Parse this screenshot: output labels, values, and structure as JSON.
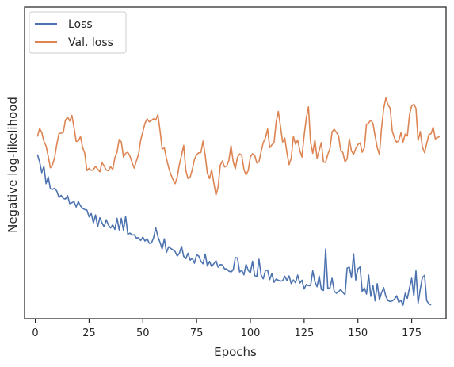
{
  "chart_data": {
    "type": "line",
    "xlabel": "Epochs",
    "ylabel": "Negative log-likelihood",
    "xlim": [
      -5,
      191
    ],
    "ylim": [
      0,
      1
    ],
    "x_ticks": [
      0,
      25,
      50,
      75,
      100,
      125,
      150,
      175
    ],
    "y_ticks_visible": false,
    "grid": false,
    "legend": "top-left",
    "series": [
      {
        "name": "Loss",
        "color": "#4c72b0",
        "x_start": 1,
        "x_step": 1,
        "values": [
          0.531,
          0.505,
          0.467,
          0.489,
          0.428,
          0.452,
          0.41,
          0.408,
          0.412,
          0.402,
          0.38,
          0.387,
          0.376,
          0.374,
          0.386,
          0.358,
          0.361,
          0.365,
          0.346,
          0.365,
          0.35,
          0.341,
          0.337,
          0.335,
          0.311,
          0.323,
          0.29,
          0.318,
          0.276,
          0.308,
          0.29,
          0.276,
          0.301,
          0.282,
          0.272,
          0.283,
          0.267,
          0.306,
          0.265,
          0.306,
          0.264,
          0.313,
          0.25,
          0.254,
          0.247,
          0.248,
          0.237,
          0.238,
          0.228,
          0.24,
          0.226,
          0.234,
          0.218,
          0.219,
          0.238,
          0.272,
          0.242,
          0.221,
          0.198,
          0.234,
          0.186,
          0.206,
          0.2,
          0.195,
          0.189,
          0.173,
          0.183,
          0.207,
          0.172,
          0.164,
          0.183,
          0.159,
          0.165,
          0.148,
          0.178,
          0.173,
          0.155,
          0.146,
          0.18,
          0.138,
          0.154,
          0.136,
          0.146,
          0.157,
          0.134,
          0.143,
          0.142,
          0.128,
          0.128,
          0.12,
          0.117,
          0.124,
          0.168,
          0.166,
          0.117,
          0.123,
          0.107,
          0.144,
          0.123,
          0.114,
          0.155,
          0.104,
          0.102,
          0.162,
          0.106,
          0.093,
          0.122,
          0.124,
          0.09,
          0.112,
          0.081,
          0.092,
          0.088,
          0.085,
          0.086,
          0.102,
          0.087,
          0.103,
          0.076,
          0.089,
          0.079,
          0.106,
          0.078,
          0.088,
          0.057,
          0.073,
          0.069,
          0.069,
          0.121,
          0.083,
          0.065,
          0.103,
          0.055,
          0.052,
          0.198,
          0.06,
          0.061,
          0.095,
          0.049,
          0.042,
          0.048,
          0.055,
          0.045,
          0.037,
          0.131,
          0.134,
          0.097,
          0.181,
          0.089,
          0.128,
          0.135,
          0.048,
          0.061,
          0.039,
          0.106,
          0.031,
          0.07,
          0.015,
          0.076,
          0.019,
          0.044,
          0.062,
          0.031,
          0.016,
          0.013,
          0.015,
          0.021,
          0.033,
          0.01,
          0.017,
          0.0,
          0.042,
          0.024,
          0.061,
          0.095,
          0.033,
          0.121,
          0.007,
          0.057,
          0.098,
          0.105,
          0.016,
          0.005,
          0.0
        ]
      },
      {
        "name": "Val. loss",
        "color": "#dd8452",
        "x_start": 1,
        "x_step": 1,
        "values": [
          0.594,
          0.623,
          0.609,
          0.577,
          0.561,
          0.525,
          0.484,
          0.495,
          0.521,
          0.567,
          0.605,
          0.606,
          0.609,
          0.652,
          0.663,
          0.649,
          0.669,
          0.626,
          0.577,
          0.579,
          0.594,
          0.556,
          0.535,
          0.474,
          0.482,
          0.475,
          0.477,
          0.489,
          0.479,
          0.47,
          0.502,
          0.491,
          0.476,
          0.474,
          0.488,
          0.478,
          0.52,
          0.539,
          0.584,
          0.575,
          0.522,
          0.535,
          0.539,
          0.525,
          0.502,
          0.483,
          0.508,
          0.532,
          0.582,
          0.611,
          0.641,
          0.657,
          0.646,
          0.651,
          0.657,
          0.652,
          0.672,
          0.615,
          0.55,
          0.554,
          0.516,
          0.485,
          0.461,
          0.443,
          0.428,
          0.452,
          0.496,
          0.528,
          0.563,
          0.474,
          0.446,
          0.451,
          0.478,
          0.514,
          0.53,
          0.537,
          0.538,
          0.578,
          0.528,
          0.465,
          0.446,
          0.477,
          0.431,
          0.388,
          0.416,
          0.493,
          0.508,
          0.487,
          0.49,
          0.51,
          0.562,
          0.506,
          0.48,
          0.521,
          0.533,
          0.528,
          0.478,
          0.459,
          0.474,
          0.522,
          0.534,
          0.528,
          0.501,
          0.505,
          0.541,
          0.573,
          0.589,
          0.621,
          0.555,
          0.565,
          0.572,
          0.646,
          0.683,
          0.63,
          0.575,
          0.589,
          0.537,
          0.495,
          0.518,
          0.595,
          0.567,
          0.582,
          0.545,
          0.522,
          0.598,
          0.659,
          0.699,
          0.574,
          0.535,
          0.583,
          0.518,
          0.545,
          0.573,
          0.504,
          0.503,
          0.531,
          0.552,
          0.611,
          0.62,
          0.609,
          0.597,
          0.545,
          0.538,
          0.505,
          0.516,
          0.586,
          0.543,
          0.532,
          0.552,
          0.566,
          0.572,
          0.539,
          0.554,
          0.637,
          0.642,
          0.652,
          0.641,
          0.596,
          0.555,
          0.531,
          0.625,
          0.693,
          0.73,
          0.706,
          0.694,
          0.613,
          0.589,
          0.574,
          0.579,
          0.607,
          0.575,
          0.603,
          0.596,
          0.671,
          0.702,
          0.709,
          0.694,
          0.58,
          0.612,
          0.557,
          0.537,
          0.57,
          0.601,
          0.604,
          0.627,
          0.586,
          0.591,
          0.594
        ]
      }
    ],
    "y_min_value": 0.0,
    "y_max_value": 1.0
  }
}
